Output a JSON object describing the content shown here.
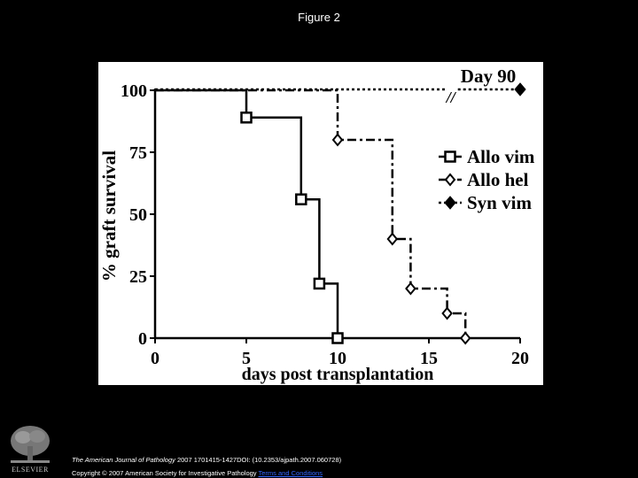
{
  "figure_title": "Figure 2",
  "citation": {
    "journal": "The American Journal of Pathology",
    "rest": " 2007 1701415-1427DOI: (10.2353/ajpath.2007.060728)"
  },
  "copyright": {
    "text": "Copyright © 2007 American Society for Investigative Pathology",
    "link": "Terms and Conditions"
  },
  "publisher_logo": "ELSEVIER",
  "chart_data": {
    "type": "line",
    "title": "",
    "xlabel": "days post transplantation",
    "ylabel": "% graft survival",
    "xlim": [
      0,
      20
    ],
    "ylim": [
      0,
      100
    ],
    "x_ticks": [
      "0",
      "5",
      "10",
      "15",
      "20"
    ],
    "y_ticks": [
      "0",
      "25",
      "50",
      "75",
      "100"
    ],
    "annotation": "Day 90",
    "break_mark": "//",
    "legend_position": "right",
    "series": [
      {
        "name": "Allo vim",
        "marker": "square",
        "line": "solid",
        "points": [
          [
            0,
            100
          ],
          [
            5,
            89
          ],
          [
            8,
            56
          ],
          [
            9,
            22
          ],
          [
            10,
            0
          ]
        ]
      },
      {
        "name": "Allo hel",
        "marker": "open-diamond",
        "line": "dash-dot",
        "points": [
          [
            0,
            100
          ],
          [
            10,
            80
          ],
          [
            13,
            40
          ],
          [
            14,
            20
          ],
          [
            16,
            10
          ],
          [
            17,
            0
          ]
        ]
      },
      {
        "name": "Syn vim",
        "marker": "filled-diamond",
        "line": "dotted",
        "points": [
          [
            0,
            100
          ],
          [
            20,
            100
          ]
        ],
        "end_label": "Day 90"
      }
    ]
  }
}
